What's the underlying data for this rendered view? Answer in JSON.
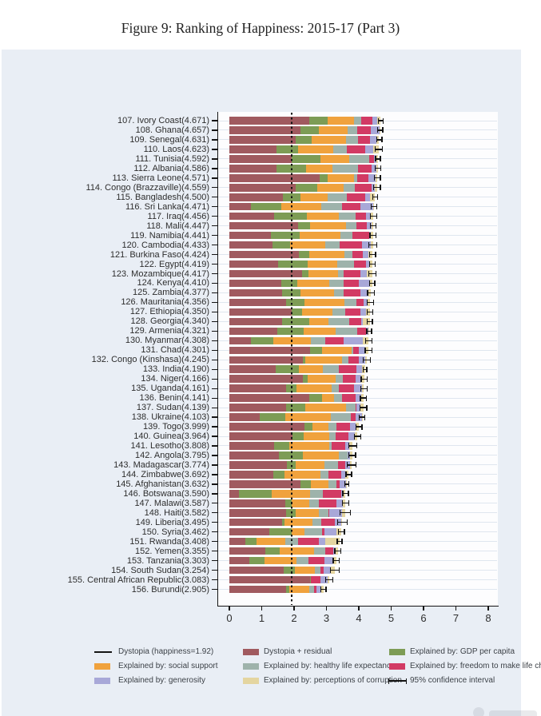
{
  "title": "Figure 9: Ranking of Happiness: 2015-17 (Part 3)",
  "chart_data": {
    "type": "bar",
    "orientation": "horizontal-stacked",
    "title": "Figure 9: Ranking of Happiness: 2015-17 (Part 3)",
    "xlabel": "",
    "ylabel": "",
    "xlim": [
      0,
      8.3
    ],
    "xticks": [
      0,
      1,
      2,
      3,
      4,
      5,
      6,
      7,
      8
    ],
    "grid": true,
    "legend_position": "bottom",
    "dystopia_line": {
      "value": 1.92,
      "label": "Dystopia (happiness=1.92)"
    },
    "series_order": [
      "residual",
      "gdp",
      "social",
      "health",
      "freedom",
      "generosity",
      "corruption"
    ],
    "series_labels": {
      "residual": "Dystopia + residual",
      "gdp": "Explained by: GDP per capita",
      "social": "Explained by: social support",
      "health": "Explained by: healthy life expectancy",
      "freedom": "Explained by: freedom to make life choices",
      "generosity": "Explained by: generosity",
      "corruption": "Explained by: perceptions of corruption"
    },
    "colors": {
      "residual": "#a05a5f",
      "gdp": "#7d9c55",
      "social": "#f0a23d",
      "health": "#9eb3ab",
      "freedom": "#d23a64",
      "generosity": "#a8a8d8",
      "corruption": "#e4d5a0",
      "ci": "#141414",
      "background": "#e9eef5",
      "plot_background": "#fdfdfe"
    },
    "countries": [
      {
        "rank": 107,
        "name": "Ivory Coast",
        "score": 4.671,
        "ci": 0.075,
        "residual": 2.466,
        "gdp": 0.569,
        "social": 0.808,
        "health": 0.232,
        "freedom": 0.352,
        "generosity": 0.154,
        "corruption": 0.09
      },
      {
        "rank": 108,
        "name": "Ghana",
        "score": 4.657,
        "ci": 0.08,
        "residual": 2.189,
        "gdp": 0.567,
        "social": 0.9,
        "health": 0.296,
        "freedom": 0.423,
        "generosity": 0.257,
        "corruption": 0.025
      },
      {
        "rank": 109,
        "name": "Senegal",
        "score": 4.631,
        "ci": 0.085,
        "residual": 2.057,
        "gdp": 0.479,
        "social": 1.06,
        "health": 0.39,
        "freedom": 0.362,
        "generosity": 0.194,
        "corruption": 0.089
      },
      {
        "rank": 110,
        "name": "Laos",
        "score": 4.623,
        "ci": 0.11,
        "residual": 1.457,
        "gdp": 0.672,
        "social": 1.079,
        "health": 0.411,
        "freedom": 0.586,
        "generosity": 0.24,
        "corruption": 0.178
      },
      {
        "rank": 111,
        "name": "Tunisia",
        "score": 4.592,
        "ci": 0.075,
        "residual": 1.915,
        "gdp": 0.891,
        "social": 0.9,
        "health": 0.604,
        "freedom": 0.168,
        "generosity": 0.059,
        "corruption": 0.055
      },
      {
        "rank": 112,
        "name": "Albania",
        "score": 4.586,
        "ci": 0.085,
        "residual": 1.463,
        "gdp": 0.916,
        "social": 0.817,
        "health": 0.79,
        "freedom": 0.419,
        "generosity": 0.149,
        "corruption": 0.032
      },
      {
        "rank": 113,
        "name": "Sierra Leone",
        "score": 4.571,
        "ci": 0.095,
        "residual": 2.786,
        "gdp": 0.256,
        "social": 0.813,
        "health": 0.088,
        "freedom": 0.356,
        "generosity": 0.219,
        "corruption": 0.053
      },
      {
        "rank": 114,
        "name": "Congo (Brazzaville)",
        "score": 4.559,
        "ci": 0.105,
        "residual": 2.039,
        "gdp": 0.682,
        "social": 0.811,
        "health": 0.343,
        "freedom": 0.514,
        "generosity": 0.093,
        "corruption": 0.077
      },
      {
        "rank": 115,
        "name": "Bangladesh",
        "score": 4.5,
        "ci": 0.075,
        "residual": 1.662,
        "gdp": 0.532,
        "social": 0.85,
        "health": 0.579,
        "freedom": 0.58,
        "generosity": 0.153,
        "corruption": 0.144
      },
      {
        "rank": 116,
        "name": "Sri Lanka",
        "score": 4.471,
        "ci": 0.085,
        "residual": 0.675,
        "gdp": 0.918,
        "social": 1.259,
        "health": 0.625,
        "freedom": 0.561,
        "generosity": 0.401,
        "corruption": 0.032
      },
      {
        "rank": 117,
        "name": "Iraq",
        "score": 4.456,
        "ci": 0.095,
        "residual": 1.392,
        "gdp": 1.01,
        "social": 0.971,
        "health": 0.536,
        "freedom": 0.304,
        "generosity": 0.148,
        "corruption": 0.095
      },
      {
        "rank": 118,
        "name": "Mali",
        "score": 4.447,
        "ci": 0.085,
        "residual": 2.117,
        "gdp": 0.385,
        "social": 1.105,
        "health": 0.308,
        "freedom": 0.327,
        "generosity": 0.153,
        "corruption": 0.052
      },
      {
        "rank": 119,
        "name": "Namibia",
        "score": 4.441,
        "ci": 0.095,
        "residual": 1.287,
        "gdp": 0.874,
        "social": 1.281,
        "health": 0.365,
        "freedom": 0.519,
        "generosity": 0.051,
        "corruption": 0.064
      },
      {
        "rank": 120,
        "name": "Cambodia",
        "score": 4.433,
        "ci": 0.13,
        "residual": 1.321,
        "gdp": 0.549,
        "social": 1.088,
        "health": 0.457,
        "freedom": 0.696,
        "generosity": 0.257,
        "corruption": 0.065
      },
      {
        "rank": 121,
        "name": "Burkina Faso",
        "score": 4.424,
        "ci": 0.095,
        "residual": 2.144,
        "gdp": 0.314,
        "social": 1.097,
        "health": 0.254,
        "freedom": 0.312,
        "generosity": 0.175,
        "corruption": 0.128
      },
      {
        "rank": 122,
        "name": "Egypt",
        "score": 4.419,
        "ci": 0.085,
        "residual": 1.501,
        "gdp": 0.92,
        "social": 0.905,
        "health": 0.519,
        "freedom": 0.388,
        "generosity": 0.09,
        "corruption": 0.096
      },
      {
        "rank": 123,
        "name": "Mozambique",
        "score": 4.417,
        "ci": 0.115,
        "residual": 2.249,
        "gdp": 0.198,
        "social": 0.902,
        "health": 0.173,
        "freedom": 0.531,
        "generosity": 0.206,
        "corruption": 0.158
      },
      {
        "rank": 124,
        "name": "Kenya",
        "score": 4.41,
        "ci": 0.085,
        "residual": 1.607,
        "gdp": 0.493,
        "social": 0.996,
        "health": 0.428,
        "freedom": 0.482,
        "generosity": 0.343,
        "corruption": 0.061
      },
      {
        "rank": 125,
        "name": "Zambia",
        "score": 4.377,
        "ci": 0.105,
        "residual": 1.636,
        "gdp": 0.562,
        "social": 1.047,
        "health": 0.295,
        "freedom": 0.503,
        "generosity": 0.247,
        "corruption": 0.087
      },
      {
        "rank": 126,
        "name": "Mauritania",
        "score": 4.356,
        "ci": 0.095,
        "residual": 1.743,
        "gdp": 0.57,
        "social": 1.245,
        "health": 0.376,
        "freedom": 0.224,
        "generosity": 0.11,
        "corruption": 0.088
      },
      {
        "rank": 127,
        "name": "Ethiopia",
        "score": 4.35,
        "ci": 0.085,
        "residual": 1.937,
        "gdp": 0.308,
        "social": 0.95,
        "health": 0.391,
        "freedom": 0.452,
        "generosity": 0.18,
        "corruption": 0.132
      },
      {
        "rank": 128,
        "name": "Georgia",
        "score": 4.34,
        "ci": 0.075,
        "residual": 1.624,
        "gdp": 0.853,
        "social": 0.592,
        "health": 0.643,
        "freedom": 0.375,
        "generosity": 0.038,
        "corruption": 0.215
      },
      {
        "rank": 129,
        "name": "Armenia",
        "score": 4.321,
        "ci": 0.075,
        "residual": 1.484,
        "gdp": 0.816,
        "social": 0.99,
        "health": 0.666,
        "freedom": 0.26,
        "generosity": 0.077,
        "corruption": 0.028
      },
      {
        "rank": 130,
        "name": "Myanmar",
        "score": 4.308,
        "ci": 0.095,
        "residual": 0.667,
        "gdp": 0.682,
        "social": 1.174,
        "health": 0.429,
        "freedom": 0.58,
        "generosity": 0.598,
        "corruption": 0.178
      },
      {
        "rank": 131,
        "name": "Chad",
        "score": 4.301,
        "ci": 0.105,
        "residual": 2.504,
        "gdp": 0.358,
        "social": 0.907,
        "health": 0.053,
        "freedom": 0.188,
        "generosity": 0.181,
        "corruption": 0.11
      },
      {
        "rank": 132,
        "name": "Congo (Kinshasa)",
        "score": 4.245,
        "ci": 0.115,
        "residual": 2.275,
        "gdp": 0.069,
        "social": 1.136,
        "health": 0.204,
        "freedom": 0.312,
        "generosity": 0.197,
        "corruption": 0.052
      },
      {
        "rank": 133,
        "name": "India",
        "score": 4.19,
        "ci": 0.055,
        "residual": 1.433,
        "gdp": 0.721,
        "social": 0.747,
        "health": 0.485,
        "freedom": 0.539,
        "generosity": 0.172,
        "corruption": 0.093
      },
      {
        "rank": 134,
        "name": "Niger",
        "score": 4.166,
        "ci": 0.095,
        "residual": 2.283,
        "gdp": 0.131,
        "social": 0.867,
        "health": 0.221,
        "freedom": 0.39,
        "generosity": 0.175,
        "corruption": 0.099
      },
      {
        "rank": 135,
        "name": "Uganda",
        "score": 4.161,
        "ci": 0.095,
        "residual": 1.742,
        "gdp": 0.322,
        "social": 1.09,
        "health": 0.237,
        "freedom": 0.45,
        "generosity": 0.259,
        "corruption": 0.061
      },
      {
        "rank": 136,
        "name": "Benin",
        "score": 4.141,
        "ci": 0.095,
        "residual": 2.481,
        "gdp": 0.378,
        "social": 0.372,
        "health": 0.24,
        "freedom": 0.44,
        "generosity": 0.163,
        "corruption": 0.067
      },
      {
        "rank": 137,
        "name": "Sudan",
        "score": 4.139,
        "ci": 0.105,
        "residual": 1.75,
        "gdp": 0.605,
        "social": 1.24,
        "health": 0.312,
        "freedom": 0.016,
        "generosity": 0.134,
        "corruption": 0.082
      },
      {
        "rank": 138,
        "name": "Ukraine",
        "score": 4.103,
        "ci": 0.085,
        "residual": 0.927,
        "gdp": 0.793,
        "social": 1.413,
        "health": 0.609,
        "freedom": 0.163,
        "generosity": 0.187,
        "corruption": 0.011
      },
      {
        "rank": 139,
        "name": "Togo",
        "score": 3.999,
        "ci": 0.095,
        "residual": 2.32,
        "gdp": 0.259,
        "social": 0.474,
        "health": 0.253,
        "freedom": 0.434,
        "generosity": 0.158,
        "corruption": 0.101
      },
      {
        "rank": 140,
        "name": "Guinea",
        "score": 3.964,
        "ci": 0.095,
        "residual": 1.944,
        "gdp": 0.344,
        "social": 0.792,
        "health": 0.211,
        "freedom": 0.394,
        "generosity": 0.185,
        "corruption": 0.094
      },
      {
        "rank": 141,
        "name": "Lesotho",
        "score": 3.808,
        "ci": 0.125,
        "residual": 1.391,
        "gdp": 0.472,
        "social": 1.215,
        "health": 0.079,
        "freedom": 0.423,
        "generosity": 0.116,
        "corruption": 0.112
      },
      {
        "rank": 142,
        "name": "Angola",
        "score": 3.795,
        "ci": 0.105,
        "residual": 1.531,
        "gdp": 0.73,
        "social": 1.125,
        "health": 0.269,
        "freedom": 0.0,
        "generosity": 0.079,
        "corruption": 0.061
      },
      {
        "rank": 143,
        "name": "Madagascar",
        "score": 3.774,
        "ci": 0.135,
        "residual": 1.777,
        "gdp": 0.262,
        "social": 0.908,
        "health": 0.402,
        "freedom": 0.221,
        "generosity": 0.155,
        "corruption": 0.049
      },
      {
        "rank": 144,
        "name": "Zimbabwe",
        "score": 3.692,
        "ci": 0.085,
        "residual": 1.356,
        "gdp": 0.357,
        "social": 1.094,
        "health": 0.248,
        "freedom": 0.406,
        "generosity": 0.132,
        "corruption": 0.099
      },
      {
        "rank": 145,
        "name": "Afghanistan",
        "score": 3.632,
        "ci": 0.065,
        "residual": 2.196,
        "gdp": 0.332,
        "social": 0.537,
        "health": 0.255,
        "freedom": 0.085,
        "generosity": 0.191,
        "corruption": 0.036
      },
      {
        "rank": 146,
        "name": "Botswana",
        "score": 3.59,
        "ci": 0.085,
        "residual": 0.291,
        "gdp": 1.017,
        "social": 1.174,
        "health": 0.417,
        "freedom": 0.557,
        "generosity": 0.042,
        "corruption": 0.092
      },
      {
        "rank": 147,
        "name": "Malawi",
        "score": 3.587,
        "ci": 0.095,
        "residual": 1.733,
        "gdp": 0.186,
        "social": 0.541,
        "health": 0.306,
        "freedom": 0.531,
        "generosity": 0.21,
        "corruption": 0.08
      },
      {
        "rank": 148,
        "name": "Haiti",
        "score": 3.582,
        "ci": 0.155,
        "residual": 1.743,
        "gdp": 0.315,
        "social": 0.714,
        "health": 0.289,
        "freedom": 0.025,
        "generosity": 0.392,
        "corruption": 0.104
      },
      {
        "rank": 149,
        "name": "Liberia",
        "score": 3.495,
        "ci": 0.145,
        "residual": 1.639,
        "gdp": 0.076,
        "social": 0.858,
        "health": 0.267,
        "freedom": 0.419,
        "generosity": 0.206,
        "corruption": 0.03
      },
      {
        "rank": 150,
        "name": "Syria",
        "score": 3.462,
        "ci": 0.095,
        "residual": 1.244,
        "gdp": 0.689,
        "social": 0.382,
        "health": 0.539,
        "freedom": 0.088,
        "generosity": 0.376,
        "corruption": 0.144
      },
      {
        "rank": 151,
        "name": "Rwanda",
        "score": 3.408,
        "ci": 0.075,
        "residual": 0.5,
        "gdp": 0.332,
        "social": 0.896,
        "health": 0.4,
        "freedom": 0.636,
        "generosity": 0.2,
        "corruption": 0.444
      },
      {
        "rank": 152,
        "name": "Yemen",
        "score": 3.355,
        "ci": 0.095,
        "residual": 1.106,
        "gdp": 0.442,
        "social": 1.073,
        "health": 0.343,
        "freedom": 0.244,
        "generosity": 0.083,
        "corruption": 0.064
      },
      {
        "rank": 153,
        "name": "Tanzania",
        "score": 3.303,
        "ci": 0.095,
        "residual": 0.628,
        "gdp": 0.455,
        "social": 0.991,
        "health": 0.381,
        "freedom": 0.481,
        "generosity": 0.27,
        "corruption": 0.097
      },
      {
        "rank": 154,
        "name": "South Sudan",
        "score": 3.254,
        "ci": 0.135,
        "residual": 1.69,
        "gdp": 0.337,
        "social": 0.608,
        "health": 0.177,
        "freedom": 0.112,
        "generosity": 0.224,
        "corruption": 0.106
      },
      {
        "rank": 155,
        "name": "Central African Republic",
        "score": 3.083,
        "ci": 0.115,
        "residual": 2.488,
        "gdp": 0.024,
        "social": 0.0,
        "health": 0.01,
        "freedom": 0.305,
        "generosity": 0.218,
        "corruption": 0.038
      },
      {
        "rank": 156,
        "name": "Burundi",
        "score": 2.905,
        "ci": 0.085,
        "residual": 1.752,
        "gdp": 0.091,
        "social": 0.627,
        "health": 0.145,
        "freedom": 0.065,
        "generosity": 0.149,
        "corruption": 0.076
      }
    ]
  },
  "legend": {
    "items": [
      {
        "label": "Dystopia (happiness=1.92)",
        "type": "line",
        "col": 0,
        "row": 0
      },
      {
        "label": "Dystopia + residual",
        "type": "swatch",
        "series": "residual",
        "col": 1,
        "row": 0
      },
      {
        "label": "Explained by: GDP per capita",
        "type": "swatch",
        "series": "gdp",
        "col": 2,
        "row": 0
      },
      {
        "label": "Explained by: social support",
        "type": "swatch",
        "series": "social",
        "col": 0,
        "row": 1
      },
      {
        "label": "Explained by: healthy life expectancy",
        "type": "swatch",
        "series": "health",
        "col": 1,
        "row": 1
      },
      {
        "label": "Explained by: freedom to make life choices",
        "type": "swatch",
        "series": "freedom",
        "col": 2,
        "row": 1
      },
      {
        "label": "Explained by: generosity",
        "type": "swatch",
        "series": "generosity",
        "col": 0,
        "row": 2
      },
      {
        "label": "Explained by: perceptions of corruption",
        "type": "swatch",
        "series": "corruption",
        "col": 1,
        "row": 2
      },
      {
        "label": "95% confidence interval",
        "type": "ci",
        "col": 2,
        "row": 2
      }
    ]
  }
}
